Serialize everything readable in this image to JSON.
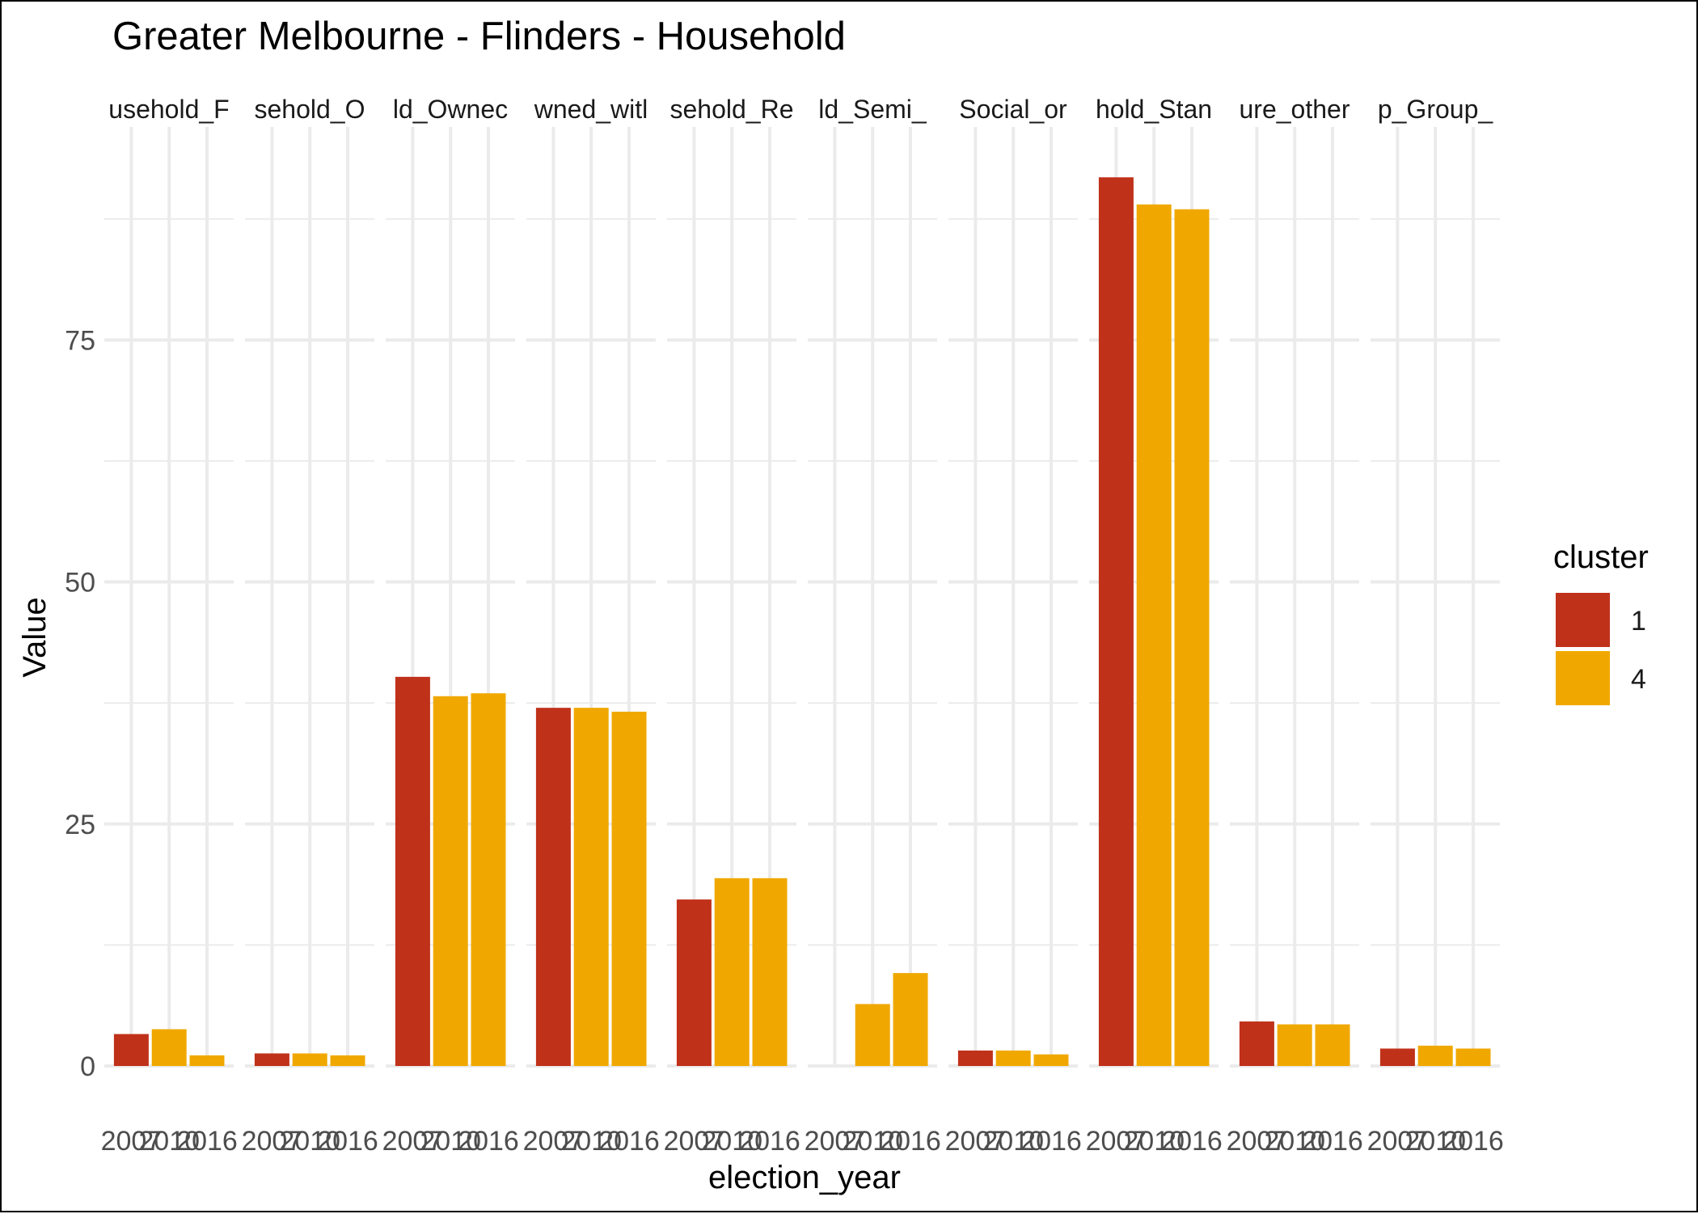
{
  "chart_data": {
    "type": "bar",
    "title": "Greater Melbourne - Flinders - Household",
    "xlabel": "election_year",
    "ylabel": "Value",
    "ylim": [
      0,
      97
    ],
    "y_ticks": [
      0,
      25,
      50,
      75
    ],
    "x_ticks": [
      "2007",
      "2010",
      "2016"
    ],
    "grid": true,
    "legend": {
      "title": "cluster",
      "position": "right",
      "entries": [
        {
          "label": "1",
          "color": "#C0311A"
        },
        {
          "label": "4",
          "color": "#F0A800"
        }
      ]
    },
    "facets": [
      {
        "label": "usehold_F",
        "bars": [
          {
            "year": "2007",
            "cluster": "1",
            "value": 3.3
          },
          {
            "year": "2010",
            "cluster": "4",
            "value": 3.8
          },
          {
            "year": "2016",
            "cluster": "4",
            "value": 1.1
          }
        ]
      },
      {
        "label": "sehold_O",
        "bars": [
          {
            "year": "2007",
            "cluster": "1",
            "value": 1.3
          },
          {
            "year": "2010",
            "cluster": "4",
            "value": 1.3
          },
          {
            "year": "2016",
            "cluster": "4",
            "value": 1.1
          }
        ]
      },
      {
        "label": "ld_Ownec",
        "bars": [
          {
            "year": "2007",
            "cluster": "1",
            "value": 40.2
          },
          {
            "year": "2010",
            "cluster": "4",
            "value": 38.2
          },
          {
            "year": "2016",
            "cluster": "4",
            "value": 38.5
          }
        ]
      },
      {
        "label": "wned_witl",
        "bars": [
          {
            "year": "2007",
            "cluster": "1",
            "value": 37.0
          },
          {
            "year": "2010",
            "cluster": "4",
            "value": 37.0
          },
          {
            "year": "2016",
            "cluster": "4",
            "value": 36.6
          }
        ]
      },
      {
        "label": "sehold_Re",
        "bars": [
          {
            "year": "2007",
            "cluster": "1",
            "value": 17.2
          },
          {
            "year": "2010",
            "cluster": "4",
            "value": 19.4
          },
          {
            "year": "2016",
            "cluster": "4",
            "value": 19.4
          }
        ]
      },
      {
        "label": "ld_Semi_",
        "bars": [
          {
            "year": "2010",
            "cluster": "4",
            "value": 6.4
          },
          {
            "year": "2016",
            "cluster": "4",
            "value": 9.6
          }
        ]
      },
      {
        "label": "Social_or",
        "bars": [
          {
            "year": "2007",
            "cluster": "1",
            "value": 1.6
          },
          {
            "year": "2010",
            "cluster": "4",
            "value": 1.6
          },
          {
            "year": "2016",
            "cluster": "4",
            "value": 1.2
          }
        ]
      },
      {
        "label": "hold_Stan",
        "bars": [
          {
            "year": "2007",
            "cluster": "1",
            "value": 91.8
          },
          {
            "year": "2010",
            "cluster": "4",
            "value": 89.0
          },
          {
            "year": "2016",
            "cluster": "4",
            "value": 88.5
          }
        ]
      },
      {
        "label": "ure_other",
        "bars": [
          {
            "year": "2007",
            "cluster": "1",
            "value": 4.6
          },
          {
            "year": "2010",
            "cluster": "4",
            "value": 4.3
          },
          {
            "year": "2016",
            "cluster": "4",
            "value": 4.3
          }
        ]
      },
      {
        "label": "p_Group_",
        "bars": [
          {
            "year": "2007",
            "cluster": "1",
            "value": 1.8
          },
          {
            "year": "2010",
            "cluster": "4",
            "value": 2.1
          },
          {
            "year": "2016",
            "cluster": "4",
            "value": 1.8
          }
        ]
      }
    ]
  }
}
